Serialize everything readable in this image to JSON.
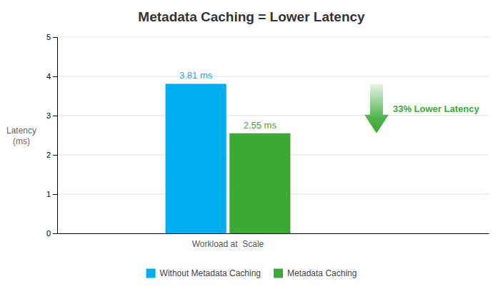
{
  "chart_data": {
    "type": "bar",
    "title": "Metadata Caching = Lower Latency",
    "categories": [
      "Workload at  Scale"
    ],
    "series": [
      {
        "name": "Without Metadata Caching",
        "color": "#00AEEF",
        "values": [
          3.81
        ],
        "value_labels": [
          "3.81 ms"
        ]
      },
      {
        "name": "Metadata Caching",
        "color": "#3AAA35",
        "values": [
          2.55
        ],
        "value_labels": [
          "2.55 ms"
        ]
      }
    ],
    "ylabel": "Latency\n(ms)",
    "ylim": [
      0,
      5
    ],
    "yticks": [
      0,
      1,
      2,
      3,
      4,
      5
    ],
    "grid": true,
    "legend": "bottom",
    "data_labels": true,
    "annotations": [
      {
        "text": "33% Lower Latency",
        "color": "#3AAA35"
      }
    ]
  }
}
